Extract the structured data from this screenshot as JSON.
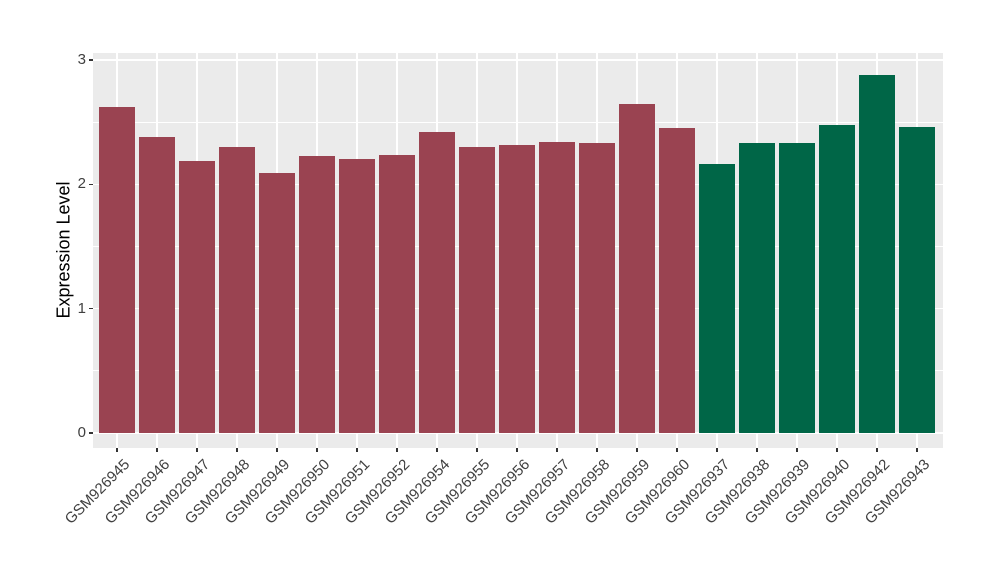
{
  "chart_data": {
    "type": "bar",
    "title": "",
    "ylabel": "Expression Level",
    "xlabel": "",
    "ylim": [
      0,
      3.05
    ],
    "yticks": [
      0,
      1,
      2,
      3
    ],
    "grid": true,
    "legend_position": "none",
    "panel_background": "#EBEBEB",
    "gridline_color": "#FFFFFF",
    "group_colors": {
      "group1": "#9A4351",
      "group2": "#006647"
    },
    "bars": [
      {
        "label": "GSM926945",
        "value": 2.62,
        "group": "group1"
      },
      {
        "label": "GSM926946",
        "value": 2.38,
        "group": "group1"
      },
      {
        "label": "GSM926947",
        "value": 2.19,
        "group": "group1"
      },
      {
        "label": "GSM926948",
        "value": 2.3,
        "group": "group1"
      },
      {
        "label": "GSM926949",
        "value": 2.09,
        "group": "group1"
      },
      {
        "label": "GSM926950",
        "value": 2.23,
        "group": "group1"
      },
      {
        "label": "GSM926951",
        "value": 2.2,
        "group": "group1"
      },
      {
        "label": "GSM926952",
        "value": 2.24,
        "group": "group1"
      },
      {
        "label": "GSM926954",
        "value": 2.42,
        "group": "group1"
      },
      {
        "label": "GSM926955",
        "value": 2.3,
        "group": "group1"
      },
      {
        "label": "GSM926956",
        "value": 2.32,
        "group": "group1"
      },
      {
        "label": "GSM926957",
        "value": 2.34,
        "group": "group1"
      },
      {
        "label": "GSM926958",
        "value": 2.33,
        "group": "group1"
      },
      {
        "label": "GSM926959",
        "value": 2.65,
        "group": "group1"
      },
      {
        "label": "GSM926960",
        "value": 2.45,
        "group": "group1"
      },
      {
        "label": "GSM926937",
        "value": 2.16,
        "group": "group2"
      },
      {
        "label": "GSM926938",
        "value": 2.33,
        "group": "group2"
      },
      {
        "label": "GSM926939",
        "value": 2.33,
        "group": "group2"
      },
      {
        "label": "GSM926940",
        "value": 2.48,
        "group": "group2"
      },
      {
        "label": "GSM926942",
        "value": 2.88,
        "group": "group2"
      },
      {
        "label": "GSM926943",
        "value": 2.46,
        "group": "group2"
      }
    ]
  }
}
